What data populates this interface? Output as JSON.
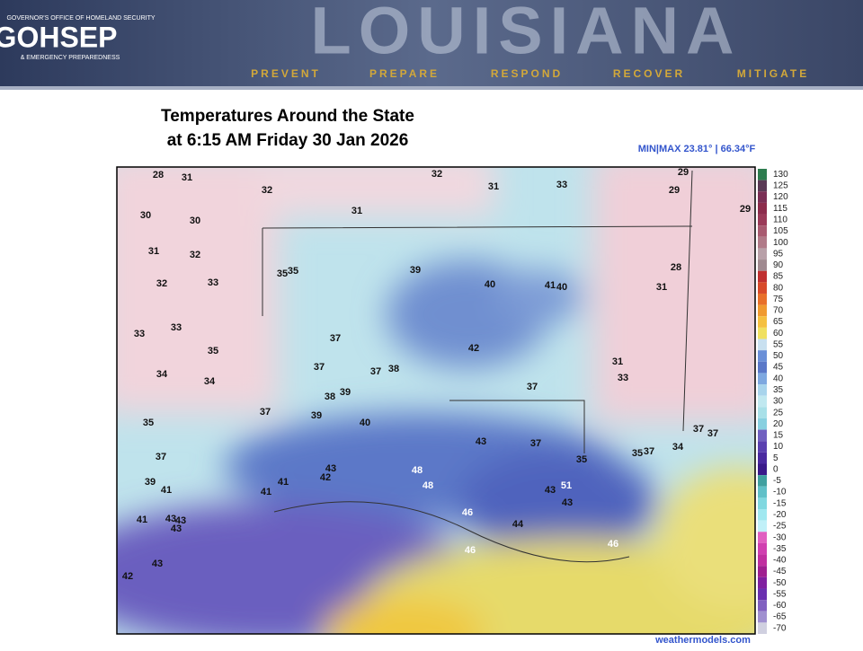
{
  "header": {
    "agency_top": "GOVERNOR'S OFFICE OF HOMELAND SECURITY",
    "logo": "GOHSEP",
    "agency_bottom": "& EMERGENCY PREPAREDNESS",
    "banner": "LOUISIANA",
    "mottos": [
      "PREVENT",
      "PREPARE",
      "RESPOND",
      "RECOVER",
      "MITIGATE"
    ]
  },
  "title": [
    "Temperatures Around the State",
    "at 6:15 AM Friday 30 Jan 2026"
  ],
  "minmax": "MIN|MAX 23.81° | 66.34°F",
  "colorbar": [
    130,
    125,
    120,
    115,
    110,
    105,
    100,
    95,
    90,
    85,
    80,
    75,
    70,
    65,
    60,
    55,
    50,
    45,
    40,
    35,
    30,
    25,
    20,
    15,
    10,
    5,
    0,
    -5,
    -10,
    -15,
    -20,
    -25,
    -30,
    -35,
    -40,
    -45,
    -50,
    -55,
    -60,
    -65,
    -70
  ],
  "stations": [
    28,
    31,
    32,
    32,
    31,
    33,
    29,
    29,
    29,
    30,
    30,
    31,
    31,
    32,
    35,
    35,
    39,
    28,
    32,
    33,
    40,
    41,
    40,
    31,
    33,
    33,
    37,
    42,
    35,
    37,
    37,
    38,
    31,
    34,
    34,
    33,
    38,
    39,
    37,
    37,
    39,
    40,
    35,
    43,
    37,
    37,
    37,
    37,
    35,
    37,
    34,
    35,
    43,
    48,
    42,
    41,
    39,
    41,
    48,
    51,
    43,
    41,
    43,
    46,
    41,
    43,
    43,
    43,
    44,
    46,
    46,
    43,
    42
  ],
  "credit": "weathermodels.com"
}
